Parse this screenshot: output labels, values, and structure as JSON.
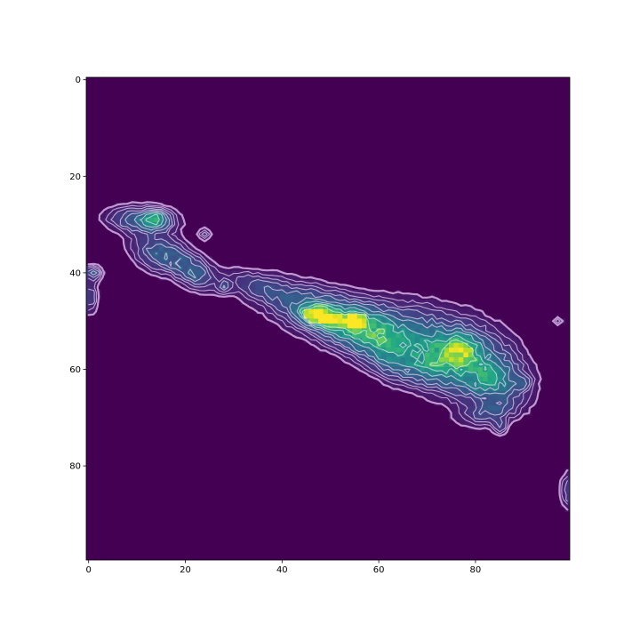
{
  "chart_data": {
    "type": "heatmap",
    "title": "",
    "xlabel": "",
    "ylabel": "",
    "xlim": [
      -0.5,
      99.5
    ],
    "ylim": [
      99.5,
      -0.5
    ],
    "y_inverted": true,
    "xticks": [
      0,
      20,
      40,
      60,
      80
    ],
    "yticks": [
      0,
      20,
      40,
      60,
      80
    ],
    "xtick_labels": [
      "0",
      "20",
      "40",
      "60",
      "80"
    ],
    "ytick_labels": [
      "0",
      "20",
      "40",
      "60",
      "80"
    ],
    "grid": false,
    "legend": "none",
    "colormap": "viridis",
    "background_color": "#440154",
    "contour_overlay": {
      "colormap": "white-to-lavender",
      "color_low": "#c8a0d8",
      "color_high": "#ffffff"
    },
    "value_range": [
      0,
      1
    ],
    "blobs": [
      {
        "x": 48,
        "y": 49,
        "sx": 2.6,
        "sy": 1.2,
        "peak": 1.0,
        "angle": 0.2
      },
      {
        "x": 55,
        "y": 50,
        "sx": 1.5,
        "sy": 1.0,
        "peak": 0.85,
        "angle": 0.0
      },
      {
        "x": 50,
        "y": 49,
        "sx": 8.5,
        "sy": 3.2,
        "peak": 0.4,
        "angle": 0.35
      },
      {
        "x": 57,
        "y": 52,
        "sx": 5.0,
        "sy": 3.0,
        "peak": 0.3,
        "angle": 0.3
      },
      {
        "x": 66,
        "y": 54,
        "sx": 7.0,
        "sy": 4.5,
        "peak": 0.3,
        "angle": 0.35
      },
      {
        "x": 78,
        "y": 58,
        "sx": 7.5,
        "sy": 5.0,
        "peak": 0.38,
        "angle": 0.45
      },
      {
        "x": 77,
        "y": 56,
        "sx": 2.5,
        "sy": 2.0,
        "peak": 0.45,
        "angle": 0.0
      },
      {
        "x": 83,
        "y": 62,
        "sx": 4.0,
        "sy": 3.0,
        "peak": 0.3,
        "angle": 0.3
      },
      {
        "x": 72,
        "y": 59,
        "sx": 3.0,
        "sy": 2.5,
        "peak": 0.25,
        "angle": 0.0
      },
      {
        "x": 63,
        "y": 58,
        "sx": 4.0,
        "sy": 2.5,
        "peak": 0.2,
        "angle": 0.5
      },
      {
        "x": 83,
        "y": 69,
        "sx": 4.0,
        "sy": 1.6,
        "peak": 0.18,
        "angle": -0.2
      },
      {
        "x": 85,
        "y": 72,
        "sx": 1.0,
        "sy": 1.0,
        "peak": 0.18,
        "angle": 0.0
      },
      {
        "x": 90,
        "y": 63,
        "sx": 1.2,
        "sy": 1.0,
        "peak": 0.15,
        "angle": 0.0
      },
      {
        "x": 35,
        "y": 43,
        "sx": 5.0,
        "sy": 2.0,
        "peak": 0.16,
        "angle": 0.3
      },
      {
        "x": 28,
        "y": 43,
        "sx": 1.0,
        "sy": 1.0,
        "peak": 0.16,
        "angle": 0.0
      },
      {
        "x": 11,
        "y": 29,
        "sx": 4.5,
        "sy": 1.8,
        "peak": 0.32,
        "angle": 0.05
      },
      {
        "x": 14,
        "y": 29,
        "sx": 1.6,
        "sy": 1.2,
        "peak": 0.42,
        "angle": 0.0
      },
      {
        "x": 15,
        "y": 36,
        "sx": 4.0,
        "sy": 2.5,
        "peak": 0.3,
        "angle": 0.35
      },
      {
        "x": 22,
        "y": 40,
        "sx": 3.0,
        "sy": 2.0,
        "peak": 0.28,
        "angle": 0.6
      },
      {
        "x": 24,
        "y": 32,
        "sx": 0.8,
        "sy": 0.8,
        "peak": 0.18,
        "angle": 0.0
      },
      {
        "x": 1,
        "y": 40,
        "sx": 1.2,
        "sy": 1.0,
        "peak": 0.25,
        "angle": 0.0
      },
      {
        "x": 0.5,
        "y": 45,
        "sx": 1.0,
        "sy": 2.5,
        "peak": 0.18,
        "angle": 0.0
      },
      {
        "x": 97,
        "y": 50,
        "sx": 0.7,
        "sy": 0.6,
        "peak": 0.14,
        "angle": 0.0
      },
      {
        "x": 99,
        "y": 85,
        "sx": 0.9,
        "sy": 2.5,
        "peak": 0.18,
        "angle": 0.0
      }
    ]
  }
}
